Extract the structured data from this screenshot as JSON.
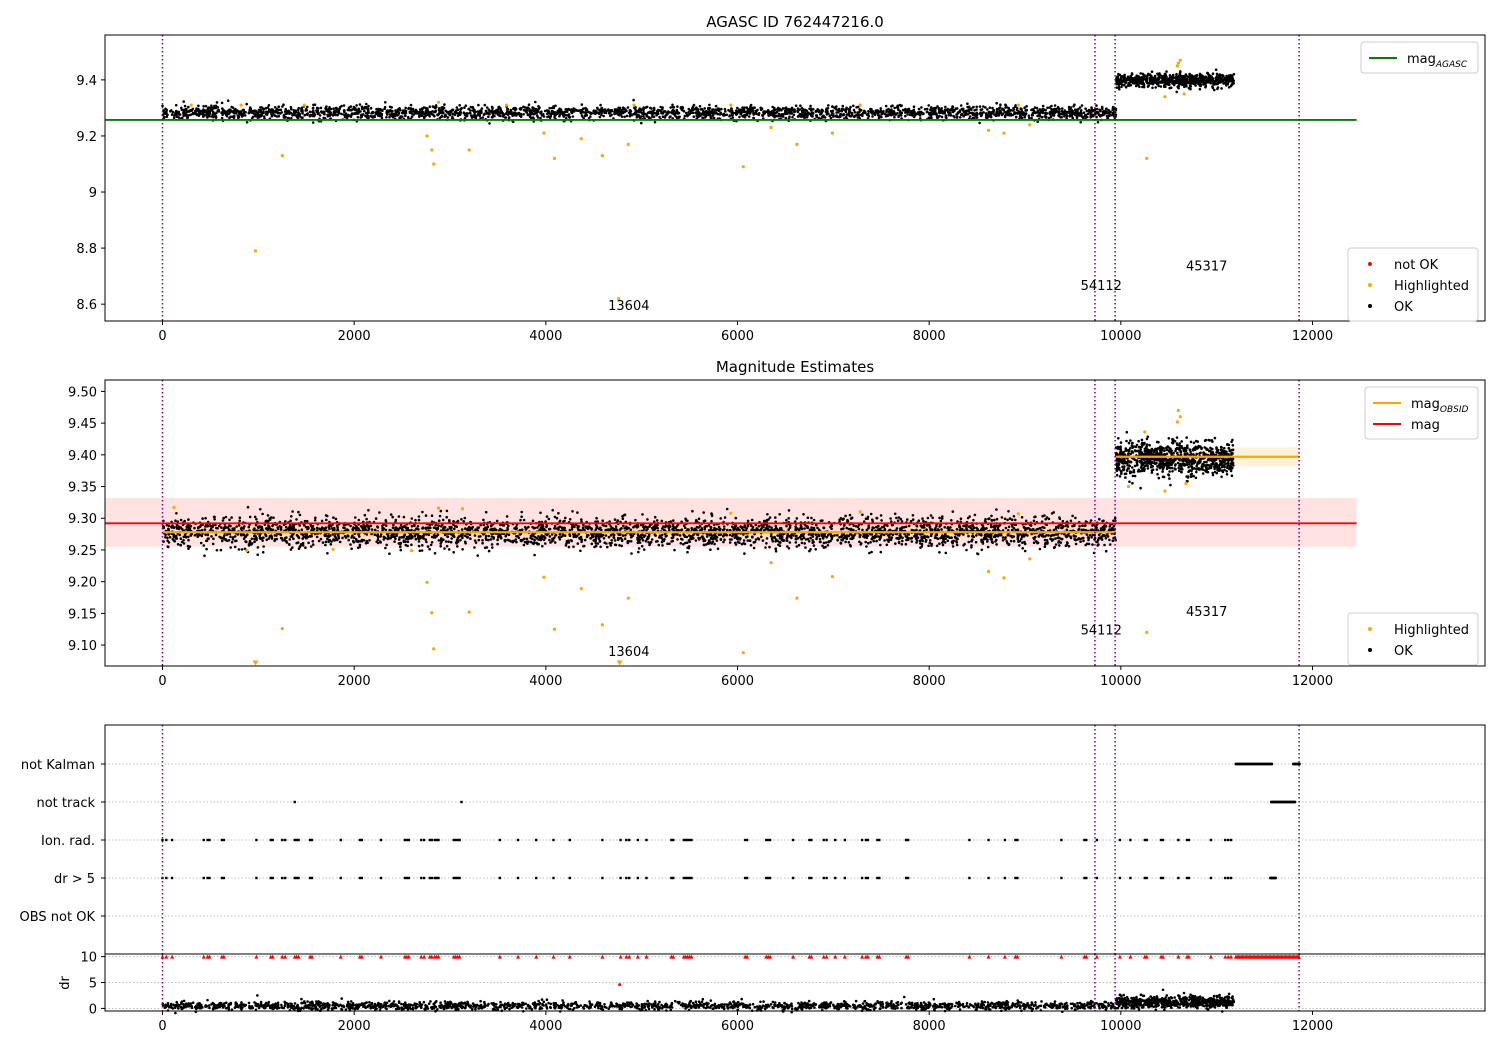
{
  "figure": {
    "title": "AGASC ID 762447216.0"
  },
  "chart_data": [
    {
      "type": "scatter",
      "title": "AGASC ID 762447216.0",
      "xlim": [
        -600,
        13800
      ],
      "ylim": [
        8.54,
        9.56
      ],
      "xticks": [
        0,
        2000,
        4000,
        6000,
        8000,
        10000,
        12000
      ],
      "yticks": [
        8.6,
        8.8,
        9.0,
        9.2,
        9.4
      ],
      "grid": false,
      "vlines": [
        0,
        9730,
        9940,
        11860
      ],
      "hlines": [
        {
          "name": "magAGASC",
          "y": 9.257,
          "x": [
            -600,
            12460
          ],
          "color": "#008000"
        }
      ],
      "ok_bands": [
        {
          "x": [
            0,
            9950
          ],
          "center": 9.283,
          "spread": 0.012
        },
        {
          "x": [
            9950,
            11180
          ],
          "center": 9.398,
          "spread": 0.012
        }
      ],
      "highlighted": [
        [
          970,
          8.79
        ],
        [
          1250,
          9.13
        ],
        [
          2760,
          9.2
        ],
        [
          2810,
          9.15
        ],
        [
          2830,
          9.1
        ],
        [
          3200,
          9.15
        ],
        [
          3980,
          9.21
        ],
        [
          4090,
          9.12
        ],
        [
          4370,
          9.19
        ],
        [
          4590,
          9.13
        ],
        [
          4760,
          8.62
        ],
        [
          4860,
          9.17
        ],
        [
          6060,
          9.09
        ],
        [
          6350,
          9.23
        ],
        [
          6620,
          9.17
        ],
        [
          6990,
          9.21
        ],
        [
          8620,
          9.22
        ],
        [
          8780,
          9.21
        ],
        [
          9050,
          9.24
        ],
        [
          10270,
          9.12
        ],
        [
          10660,
          9.35
        ],
        [
          10460,
          9.34
        ],
        [
          10600,
          9.46
        ],
        [
          10620,
          9.47
        ],
        [
          10590,
          9.45
        ],
        [
          300,
          9.31
        ],
        [
          820,
          9.31
        ],
        [
          1480,
          9.31
        ],
        [
          2880,
          9.32
        ],
        [
          3590,
          9.31
        ],
        [
          4920,
          9.31
        ],
        [
          5930,
          9.31
        ],
        [
          7280,
          9.31
        ],
        [
          8930,
          9.31
        ]
      ],
      "annotations": [
        {
          "text": "13604",
          "x": 4650,
          "y": 8.58
        },
        {
          "text": "54112",
          "x": 9580,
          "y": 8.65
        },
        {
          "text": "45317",
          "x": 10680,
          "y": 8.72
        }
      ],
      "legends": [
        {
          "position": "upper right",
          "entries": [
            {
              "kind": "line",
              "label": "mag",
              "sub": "AGASC",
              "color": "#008000"
            }
          ]
        },
        {
          "position": "lower right",
          "entries": [
            {
              "kind": "dot",
              "label": "not OK",
              "color": "#ff0000"
            },
            {
              "kind": "dot",
              "label": "Highlighted",
              "color": "#ffa500"
            },
            {
              "kind": "dot",
              "label": "OK",
              "color": "#000000"
            }
          ]
        }
      ]
    },
    {
      "type": "scatter",
      "title": "Magnitude Estimates",
      "xlim": [
        -600,
        13800
      ],
      "ylim": [
        9.067,
        9.518
      ],
      "xticks": [
        0,
        2000,
        4000,
        6000,
        8000,
        10000,
        12000
      ],
      "yticks": [
        9.1,
        9.15,
        9.2,
        9.25,
        9.3,
        9.35,
        9.4,
        9.45,
        9.5
      ],
      "ytick_labels": [
        "9.10",
        "9.15",
        "9.20",
        "9.25",
        "9.30",
        "9.35",
        "9.40",
        "9.45",
        "9.50"
      ],
      "grid": false,
      "vlines": [
        0,
        9730,
        9940,
        11860
      ],
      "mag_line": {
        "name": "mag",
        "y": 9.292,
        "x": [
          -600,
          12460
        ],
        "band": [
          9.255,
          9.332
        ],
        "color": "#ff0000"
      },
      "obsid_segments": [
        {
          "x": [
            0,
            9950
          ],
          "y": 9.278,
          "band": [
            9.27,
            9.287
          ]
        },
        {
          "x": [
            9950,
            11860
          ],
          "y": 9.397,
          "band": [
            9.382,
            9.412
          ]
        }
      ],
      "ok_bands": [
        {
          "x": [
            0,
            9950
          ],
          "center": 9.278,
          "spread": 0.012
        },
        {
          "x": [
            9950,
            11180
          ],
          "center": 9.394,
          "spread": 0.013
        }
      ],
      "highlighted": [
        [
          1250,
          9.126
        ],
        [
          2760,
          9.199
        ],
        [
          2810,
          9.151
        ],
        [
          2830,
          9.094
        ],
        [
          3200,
          9.152
        ],
        [
          3980,
          9.207
        ],
        [
          4090,
          9.125
        ],
        [
          4370,
          9.189
        ],
        [
          4590,
          9.132
        ],
        [
          4860,
          9.174
        ],
        [
          6060,
          9.088
        ],
        [
          6350,
          9.23
        ],
        [
          6620,
          9.174
        ],
        [
          6990,
          9.208
        ],
        [
          8620,
          9.216
        ],
        [
          8780,
          9.206
        ],
        [
          9050,
          9.236
        ],
        [
          10270,
          9.12
        ],
        [
          10460,
          9.343
        ],
        [
          10680,
          9.355
        ],
        [
          10600,
          9.47
        ],
        [
          10620,
          9.46
        ],
        [
          10590,
          9.452
        ],
        [
          10250,
          9.436
        ],
        [
          10080,
          9.35
        ],
        [
          880,
          9.249
        ],
        [
          1780,
          9.251
        ],
        [
          2600,
          9.249
        ],
        [
          3130,
          9.315
        ],
        [
          2880,
          9.316
        ],
        [
          5930,
          9.308
        ],
        [
          7280,
          9.31
        ],
        [
          8930,
          9.307
        ],
        [
          120,
          9.317
        ]
      ],
      "off_scale_markers": [
        [
          970,
          9.071
        ],
        [
          4770,
          9.071
        ]
      ],
      "annotations": [
        {
          "text": "13604",
          "x": 4650,
          "y": 9.083
        },
        {
          "text": "54112",
          "x": 9580,
          "y": 9.117
        },
        {
          "text": "45317",
          "x": 10680,
          "y": 9.146
        }
      ],
      "legends": [
        {
          "position": "upper right",
          "entries": [
            {
              "kind": "line",
              "label": "mag",
              "sub": "OBSID",
              "color": "#ffa500"
            },
            {
              "kind": "line",
              "label": "mag",
              "sub": "",
              "color": "#ff0000"
            }
          ]
        },
        {
          "position": "lower right",
          "entries": [
            {
              "kind": "dot",
              "label": "Highlighted",
              "color": "#ffa500"
            },
            {
              "kind": "dot",
              "label": "OK",
              "color": "#000000"
            }
          ]
        }
      ]
    },
    {
      "type": "scatter",
      "title": "",
      "xlim": [
        -600,
        13800
      ],
      "categories": [
        "not Kalman",
        "not track",
        "Ion. rad.",
        "dr > 5",
        "OBS not OK"
      ],
      "grid": "horizontal dotted",
      "vlines": [
        0,
        9730,
        9940,
        11860
      ],
      "flags": {
        "not Kalman": {
          "ranges": [
            [
              11200,
              11580
            ],
            [
              11800,
              11870
            ]
          ]
        },
        "not track": {
          "points": [
            1380,
            3120
          ],
          "ranges": [
            [
              11570,
              11820
            ]
          ]
        },
        "Ion. rad.": {
          "points": [
            0,
            40,
            100,
            430,
            470,
            490,
            620,
            640,
            980,
            1130,
            1150,
            1250,
            1280,
            1380,
            1400,
            1420,
            1540,
            1560,
            1860,
            2060,
            2080,
            2280,
            2530,
            2550,
            2570,
            2700,
            2730,
            2790,
            2810,
            2840,
            2860,
            2880,
            3040,
            3060,
            3080,
            3100,
            3520,
            3710,
            3900,
            4080,
            4250,
            4590,
            4780,
            4840,
            4870,
            4960,
            5050,
            5310,
            5330,
            5440,
            5460,
            5480,
            5500,
            5520,
            6080,
            6100,
            6300,
            6320,
            6340,
            6580,
            6750,
            6770,
            6900,
            6930,
            7020,
            7120,
            7300,
            7340,
            7360,
            7460,
            7480,
            7760,
            7780,
            8420,
            8620,
            8790,
            8900,
            8920,
            9380,
            9620,
            9640,
            9750,
            9990,
            10100,
            10250,
            10270,
            10420,
            10440,
            10600,
            10690,
            10710,
            10940,
            11090,
            11120,
            11150
          ]
        },
        "dr > 5": {
          "points": [
            0,
            40,
            100,
            430,
            470,
            490,
            620,
            640,
            980,
            1130,
            1150,
            1250,
            1280,
            1380,
            1400,
            1420,
            1540,
            1560,
            1860,
            2060,
            2080,
            2280,
            2530,
            2550,
            2570,
            2700,
            2730,
            2790,
            2810,
            2840,
            2860,
            2880,
            3040,
            3060,
            3080,
            3100,
            3520,
            3710,
            3900,
            4080,
            4250,
            4590,
            4780,
            4840,
            4870,
            4960,
            5050,
            5310,
            5330,
            5440,
            5460,
            5480,
            5500,
            5520,
            6080,
            6100,
            6300,
            6320,
            6340,
            6580,
            6750,
            6770,
            6900,
            6930,
            7020,
            7120,
            7300,
            7340,
            7360,
            7460,
            7480,
            7760,
            7780,
            8420,
            8620,
            8790,
            8900,
            8920,
            9380,
            9620,
            9640,
            9750,
            9990,
            10100,
            10250,
            10270,
            10420,
            10440,
            10600,
            10690,
            10710,
            10940,
            11090,
            11120,
            11150
          ],
          "ranges": [
            [
              11560,
              11620
            ]
          ]
        },
        "OBS not OK": {
          "points": []
        }
      }
    },
    {
      "type": "scatter",
      "title": "",
      "ylabel": "dr",
      "xlim": [
        -600,
        13800
      ],
      "ylim": [
        -0.5,
        10.5
      ],
      "xticks": [
        0,
        2000,
        4000,
        6000,
        8000,
        10000,
        12000
      ],
      "yticks": [
        0,
        5,
        10
      ],
      "grid": "horizontal dotted",
      "vlines": [
        0,
        9730,
        9940,
        11860
      ],
      "ok_bands": [
        {
          "x": [
            0,
            9950
          ],
          "center": 0.5,
          "spread": 0.4
        },
        {
          "x": [
            9950,
            11180
          ],
          "center": 1.2,
          "spread": 0.6
        }
      ],
      "clipped_markers": {
        "value": 10,
        "points_ref": "dr > 5",
        "ranges": [
          [
            11200,
            11870
          ]
        ]
      },
      "spikes": [
        [
          470,
          1.6
        ],
        [
          990,
          2.5
        ],
        [
          1450,
          1.8
        ],
        [
          1870,
          1.9
        ],
        [
          3960,
          1.7
        ],
        [
          5350,
          1.4
        ],
        [
          7330,
          1.4
        ],
        [
          7740,
          2.2
        ],
        [
          10440,
          3.6
        ],
        [
          10600,
          2.5
        ],
        [
          11130,
          2.8
        ]
      ],
      "highlighted": [
        [
          4770,
          4.6
        ]
      ]
    }
  ]
}
